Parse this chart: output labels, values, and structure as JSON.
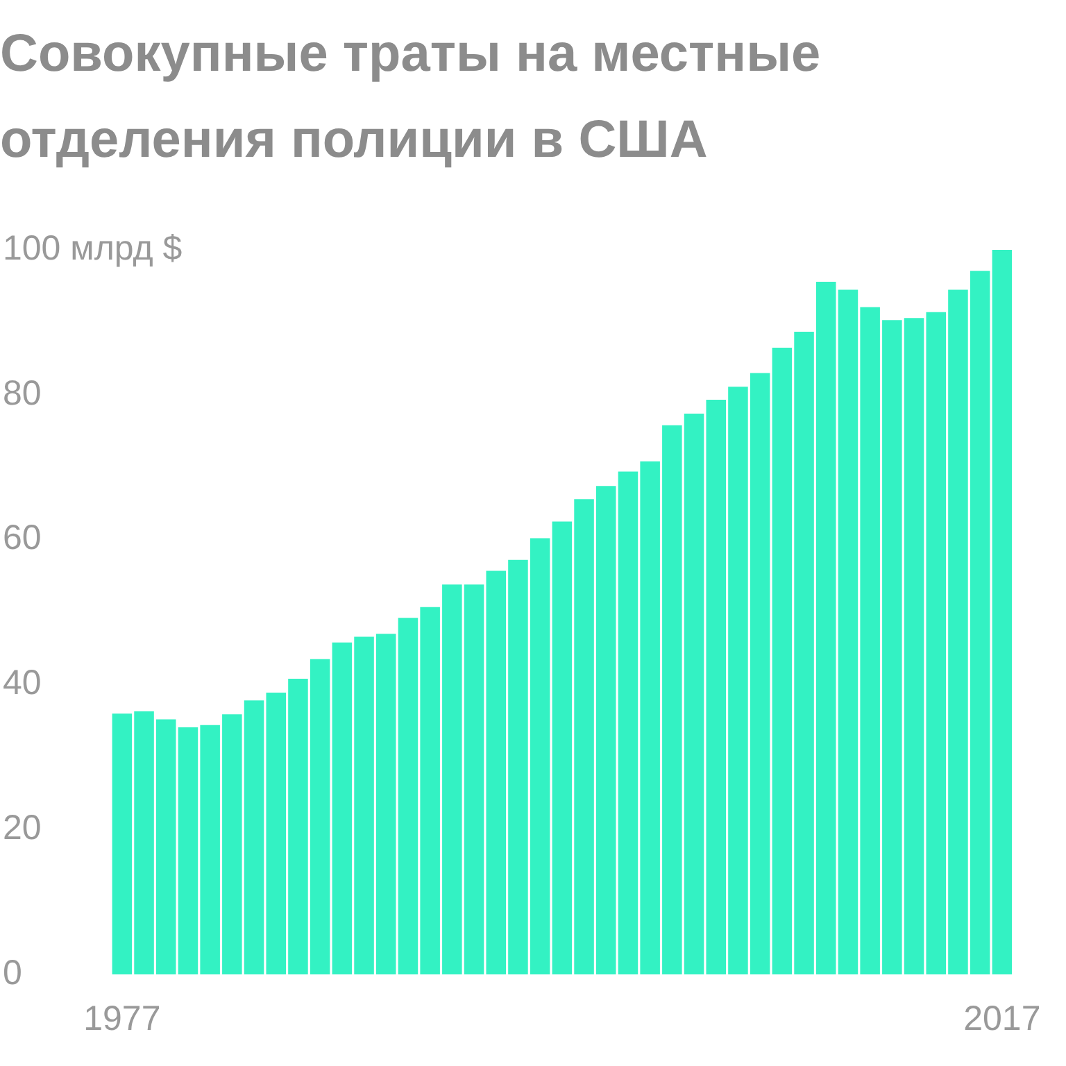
{
  "chart_data": {
    "type": "bar",
    "title": "Совокупные траты на местные отделения полиции в США",
    "categories": [
      "1977",
      null,
      null,
      null,
      null,
      null,
      null,
      null,
      null,
      null,
      null,
      null,
      null,
      null,
      null,
      null,
      null,
      null,
      null,
      null,
      null,
      null,
      null,
      null,
      null,
      null,
      null,
      null,
      null,
      null,
      null,
      null,
      null,
      null,
      null,
      null,
      null,
      null,
      null,
      null,
      "2017"
    ],
    "values": [
      36.0,
      36.3,
      35.2,
      34.1,
      34.4,
      35.9,
      37.8,
      38.9,
      40.8,
      43.5,
      45.8,
      46.6,
      47.0,
      49.2,
      50.7,
      53.8,
      53.8,
      55.7,
      57.2,
      60.2,
      62.5,
      65.6,
      67.4,
      69.4,
      70.8,
      75.8,
      77.4,
      79.3,
      81.1,
      83.0,
      86.5,
      88.7,
      95.6,
      94.5,
      92.1,
      90.3,
      90.6,
      91.4,
      94.5,
      97.1,
      100.0
    ],
    "color": "#33f2c3",
    "ylim": [
      0,
      100
    ],
    "yticks": [
      0,
      20,
      40,
      60,
      80,
      {
        "value": 100,
        "label": "100 млрд $"
      }
    ]
  }
}
